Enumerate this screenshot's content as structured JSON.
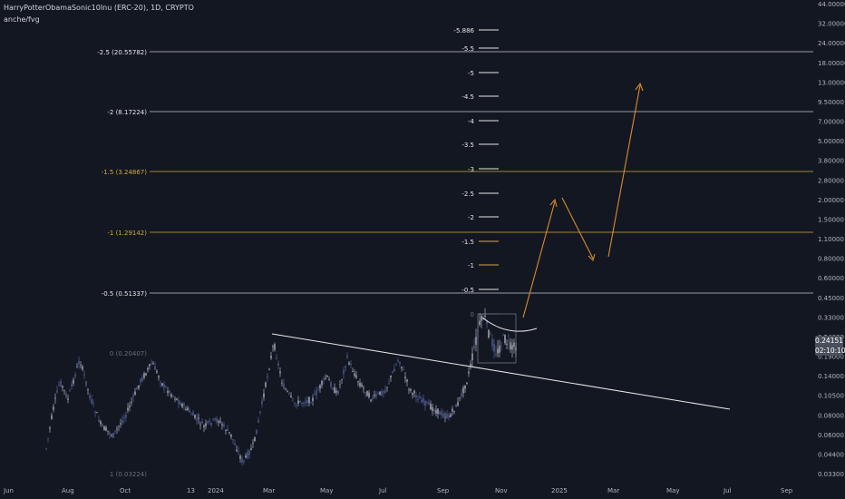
{
  "header": {
    "symbol": "HarryPotterObamaSonic10Inu (ERC-20), 1D, CRYPTO",
    "indicator": "anche/fvg"
  },
  "price_badge": {
    "price": "0.24151",
    "countdown": "02:10:10"
  },
  "colors": {
    "background": "#131722",
    "candle": "#c9ccd6",
    "fib_gold": "#d4a93a",
    "fib_white": "#c8c8c8",
    "arrow": "#d98c2b",
    "trendline": "#e8e8e8"
  },
  "chart_data": {
    "type": "candlestick",
    "price_axis": [
      "44.00000",
      "32.00000",
      "24.00000",
      "18.00000",
      "13.00000",
      "9.50000",
      "7.00000",
      "5.00000",
      "3.80000",
      "2.80000",
      "2.00000",
      "1.50000",
      "1.10000",
      "0.80000",
      "0.60000",
      "0.45000",
      "0.33000",
      "0.24000",
      "0.19000",
      "0.14000",
      "0.10500",
      "0.08000",
      "0.06000",
      "0.04400",
      "0.03300"
    ],
    "time_axis": [
      "Jun",
      "Aug",
      "Oct",
      "13",
      "2024",
      "Mar",
      "May",
      "Jul",
      "Sep",
      "Nov",
      "2025",
      "Mar",
      "May",
      "Jul",
      "Sep"
    ],
    "fib_levels_left": [
      {
        "label": "-2.5 (20.55782)",
        "price": 20.55782,
        "color": "white"
      },
      {
        "label": "-2 (8.17224)",
        "price": 8.17224,
        "color": "white"
      },
      {
        "label": "-1.5 (3.24867)",
        "price": 3.24867,
        "color": "gold"
      },
      {
        "label": "-1 (1.29142)",
        "price": 1.29142,
        "color": "gold"
      },
      {
        "label": "-0.5 (0.51337)",
        "price": 0.51337,
        "color": "white"
      },
      {
        "label": "0 (0.20407)",
        "price": 0.20407,
        "color": "gray"
      },
      {
        "label": "1 (0.03224)",
        "price": 0.03224,
        "color": "gray"
      }
    ],
    "fib_levels_mid": [
      "-5.886",
      "-5.5",
      "-5",
      "-4.5",
      "-4",
      "-3.5",
      "-3",
      "-2.5",
      "-2",
      "-1.5",
      "-1",
      "-0.5",
      "0"
    ],
    "last_price": 0.24151
  }
}
